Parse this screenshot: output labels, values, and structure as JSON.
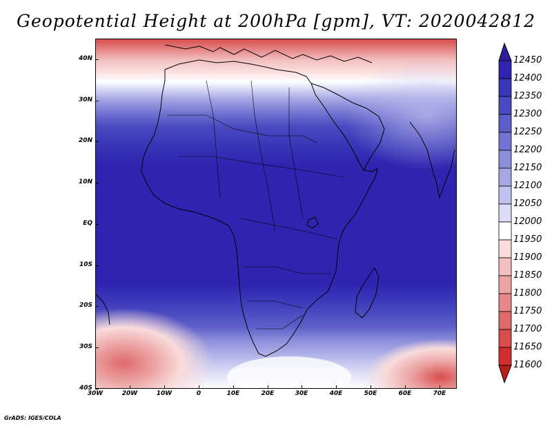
{
  "title": "Geopotential Height at 200hPa [gpm], VT: 2020042812",
  "credit": "GrADS: IGES/COLA",
  "map": {
    "projection": "lat-lon",
    "lon_range": [
      -30,
      75
    ],
    "lat_range": [
      -40,
      45
    ],
    "lat_ticks": [
      {
        "value": 40,
        "label": "40N"
      },
      {
        "value": 30,
        "label": "30N"
      },
      {
        "value": 20,
        "label": "20N"
      },
      {
        "value": 10,
        "label": "10N"
      },
      {
        "value": 0,
        "label": "EQ"
      },
      {
        "value": -10,
        "label": "10S"
      },
      {
        "value": -20,
        "label": "20S"
      },
      {
        "value": -30,
        "label": "30S"
      },
      {
        "value": -40,
        "label": "40S"
      }
    ],
    "lon_ticks": [
      {
        "value": -30,
        "label": "30W"
      },
      {
        "value": -20,
        "label": "20W"
      },
      {
        "value": -10,
        "label": "10W"
      },
      {
        "value": 0,
        "label": "0"
      },
      {
        "value": 10,
        "label": "10E"
      },
      {
        "value": 20,
        "label": "20E"
      },
      {
        "value": 30,
        "label": "30E"
      },
      {
        "value": 40,
        "label": "40E"
      },
      {
        "value": 50,
        "label": "50E"
      },
      {
        "value": 60,
        "label": "60E"
      },
      {
        "value": 70,
        "label": "70E"
      }
    ],
    "coastline_color": "#000000"
  },
  "colorbar": {
    "levels": [
      "12450",
      "12400",
      "12350",
      "12300",
      "12250",
      "12200",
      "12150",
      "12100",
      "12050",
      "12000",
      "11950",
      "11900",
      "11850",
      "11800",
      "11750",
      "11700",
      "11650",
      "11600"
    ],
    "colors": [
      "#2b1d9e",
      "#2e24b0",
      "#3a36b8",
      "#4a49bf",
      "#5d5ec8",
      "#7374d2",
      "#8c8edb",
      "#a6a8e5",
      "#c1c3ee",
      "#dcdcf6",
      "#ffffff",
      "#f9dcdc",
      "#f2c0c0",
      "#eca4a4",
      "#e58787",
      "#de6a6a",
      "#d84d4d",
      "#cf2f2f",
      "#bc1d1d"
    ]
  },
  "field": {
    "description_levels_gpm": [
      11600,
      12450
    ]
  }
}
